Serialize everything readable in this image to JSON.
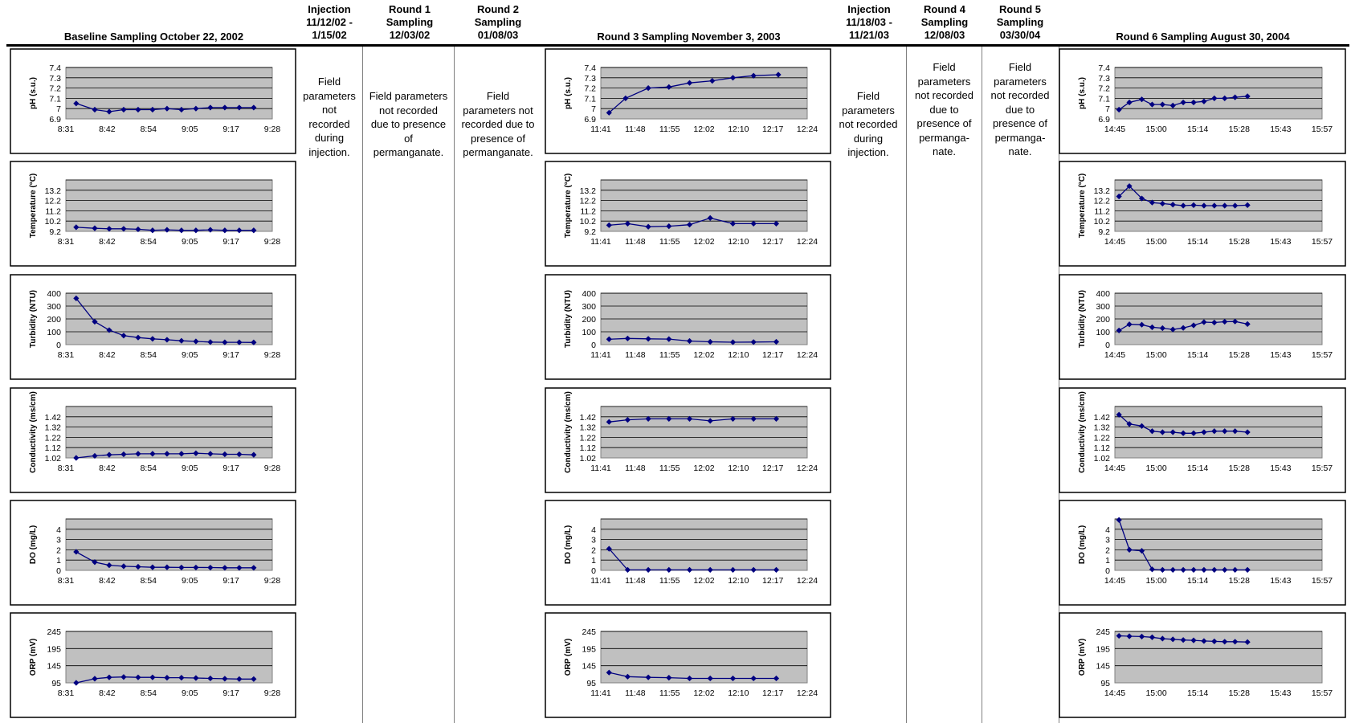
{
  "headers": {
    "baseline": "Baseline Sampling  October 22, 2002",
    "injection1": [
      "Injection",
      "11/12/02 -",
      "1/15/02"
    ],
    "round1": [
      "Round 1",
      "Sampling",
      "12/03/02"
    ],
    "round2": [
      "Round 2",
      "Sampling",
      "01/08/03"
    ],
    "round3": "Round 3 Sampling  November 3, 2003",
    "injection2": [
      "Injection",
      "11/18/03 -",
      "11/21/03"
    ],
    "round4": [
      "Round 4",
      "Sampling",
      "12/08/03"
    ],
    "round5": [
      "Round 5",
      "Sampling",
      "03/30/04"
    ],
    "round6": "Round 6 Sampling August 30, 2004"
  },
  "notes": {
    "injection1": [
      "Field",
      "parameters",
      "not",
      "recorded",
      "during",
      "injection."
    ],
    "round1": [
      "Field parameters",
      "not recorded",
      "due to presence",
      "of",
      "permanganate."
    ],
    "round2": [
      "Field",
      "parameters not",
      "recorded due to",
      "presence of",
      "permanganate."
    ],
    "injection2": [
      "Field",
      "parameters",
      "not recorded",
      "during",
      "injection."
    ],
    "round4": [
      "Field",
      "parameters",
      "not recorded",
      "due to",
      "presence of",
      "permanga-",
      "nate."
    ],
    "round5": [
      "Field",
      "parameters",
      "not recorded",
      "due to",
      "presence of",
      "permanga-",
      "nate."
    ]
  },
  "colors": {
    "plot_bg": "#c0c0c0",
    "series": "#000080",
    "grid": "#000000",
    "frame": "#000000"
  },
  "chart_data": [
    {
      "type": "line",
      "column": "baseline",
      "ylabel": "pH (s.u.)",
      "yticks": [
        "6.9",
        "7",
        "7.1",
        "7.2",
        "7.3",
        "7.4"
      ],
      "ylim": [
        6.9,
        7.4
      ],
      "xticks": [
        "8:31",
        "8:42",
        "8:54",
        "9:05",
        "9:17",
        "9:28"
      ],
      "xlim": [
        0,
        1
      ],
      "x": [
        0.05,
        0.14,
        0.21,
        0.28,
        0.35,
        0.42,
        0.49,
        0.56,
        0.63,
        0.7,
        0.77,
        0.84,
        0.91
      ],
      "y": [
        7.05,
        6.99,
        6.97,
        6.99,
        6.99,
        6.99,
        7.0,
        6.99,
        7.0,
        7.01,
        7.01,
        7.01,
        7.01
      ]
    },
    {
      "type": "line",
      "column": "baseline",
      "ylabel": "Temperature (°C)",
      "yticks": [
        "9.2",
        "10.2",
        "11.2",
        "12.2",
        "13.2"
      ],
      "ylim": [
        9.2,
        14.2
      ],
      "xticks": [
        "8:31",
        "8:42",
        "8:54",
        "9:05",
        "9:17",
        "9:28"
      ],
      "xlim": [
        0,
        1
      ],
      "x": [
        0.05,
        0.14,
        0.21,
        0.28,
        0.35,
        0.42,
        0.49,
        0.56,
        0.63,
        0.7,
        0.77,
        0.84,
        0.91
      ],
      "y": [
        9.6,
        9.5,
        9.45,
        9.45,
        9.4,
        9.3,
        9.35,
        9.3,
        9.3,
        9.35,
        9.3,
        9.3,
        9.3
      ]
    },
    {
      "type": "line",
      "column": "baseline",
      "ylabel": "Turbidity (NTU)",
      "yticks": [
        "0",
        "100",
        "200",
        "300",
        "400"
      ],
      "ylim": [
        0,
        400
      ],
      "xticks": [
        "8:31",
        "8:42",
        "8:54",
        "9:05",
        "9:17",
        "9:28"
      ],
      "xlim": [
        0,
        1
      ],
      "x": [
        0.05,
        0.14,
        0.21,
        0.28,
        0.35,
        0.42,
        0.49,
        0.56,
        0.63,
        0.7,
        0.77,
        0.84,
        0.91
      ],
      "y": [
        360,
        178,
        113,
        70,
        55,
        45,
        38,
        30,
        25,
        20,
        18,
        18,
        17
      ]
    },
    {
      "type": "line",
      "column": "baseline",
      "ylabel": "Conductivity (ms/cm)",
      "yticks": [
        "1.02",
        "1.12",
        "1.22",
        "1.32",
        "1.42"
      ],
      "ylim": [
        1.02,
        1.52
      ],
      "xticks": [
        "8:31",
        "8:42",
        "8:54",
        "9:05",
        "9:17",
        "9:28"
      ],
      "xlim": [
        0,
        1
      ],
      "x": [
        0.05,
        0.14,
        0.21,
        0.28,
        0.35,
        0.42,
        0.49,
        0.56,
        0.63,
        0.7,
        0.77,
        0.84,
        0.91
      ],
      "y": [
        1.02,
        1.04,
        1.05,
        1.055,
        1.06,
        1.06,
        1.06,
        1.06,
        1.065,
        1.06,
        1.055,
        1.055,
        1.05
      ]
    },
    {
      "type": "line",
      "column": "baseline",
      "ylabel": "DO (mg/L)",
      "yticks": [
        "0",
        "1",
        "2",
        "3",
        "4"
      ],
      "ylim": [
        0,
        5
      ],
      "xticks": [
        "8:31",
        "8:42",
        "8:54",
        "9:05",
        "9:17",
        "9:28"
      ],
      "xlim": [
        0,
        1
      ],
      "x": [
        0.05,
        0.14,
        0.21,
        0.28,
        0.35,
        0.42,
        0.49,
        0.56,
        0.63,
        0.7,
        0.77,
        0.84,
        0.91
      ],
      "y": [
        1.8,
        0.8,
        0.5,
        0.4,
        0.35,
        0.3,
        0.3,
        0.28,
        0.28,
        0.27,
        0.25,
        0.25,
        0.25
      ]
    },
    {
      "type": "line",
      "column": "baseline",
      "ylabel": "ORP (mV)",
      "yticks": [
        "95",
        "145",
        "195",
        "245"
      ],
      "ylim": [
        95,
        245
      ],
      "xticks": [
        "8:31",
        "8:42",
        "8:54",
        "9:05",
        "9:17",
        "9:28"
      ],
      "xlim": [
        0,
        1
      ],
      "x": [
        0.05,
        0.14,
        0.21,
        0.28,
        0.35,
        0.42,
        0.49,
        0.56,
        0.63,
        0.7,
        0.77,
        0.84,
        0.91
      ],
      "y": [
        95,
        107,
        111,
        112,
        111,
        111,
        110,
        110,
        109,
        108,
        107,
        106,
        106
      ]
    },
    {
      "type": "line",
      "column": "round3",
      "ylabel": "pH (s.u.)",
      "yticks": [
        "6.9",
        "7",
        "7.1",
        "7.2",
        "7.3",
        "7.4"
      ],
      "ylim": [
        6.9,
        7.4
      ],
      "xticks": [
        "11:41",
        "11:48",
        "11:55",
        "12:02",
        "12:10",
        "12:17",
        "12:24"
      ],
      "xlim": [
        0,
        1
      ],
      "x": [
        0.04,
        0.12,
        0.23,
        0.33,
        0.43,
        0.54,
        0.64,
        0.74,
        0.86
      ],
      "y": [
        6.96,
        7.1,
        7.2,
        7.21,
        7.25,
        7.27,
        7.3,
        7.32,
        7.33
      ]
    },
    {
      "type": "line",
      "column": "round3",
      "ylabel": "Temperature (°C)",
      "yticks": [
        "9.2",
        "10.2",
        "11.2",
        "12.2",
        "13.2"
      ],
      "ylim": [
        9.2,
        14.2
      ],
      "xticks": [
        "11:41",
        "11:48",
        "11:55",
        "12:02",
        "12:10",
        "12:17",
        "12:24"
      ],
      "xlim": [
        0,
        1
      ],
      "x": [
        0.04,
        0.13,
        0.23,
        0.33,
        0.43,
        0.53,
        0.64,
        0.74,
        0.85
      ],
      "y": [
        9.8,
        9.95,
        9.65,
        9.7,
        9.85,
        10.5,
        9.95,
        9.95,
        9.95
      ]
    },
    {
      "type": "line",
      "column": "round3",
      "ylabel": "Turbidity (NTU)",
      "yticks": [
        "0",
        "100",
        "200",
        "300",
        "400"
      ],
      "ylim": [
        0,
        400
      ],
      "xticks": [
        "11:41",
        "11:48",
        "11:55",
        "12:02",
        "12:10",
        "12:17",
        "12:24"
      ],
      "xlim": [
        0,
        1
      ],
      "x": [
        0.04,
        0.13,
        0.23,
        0.33,
        0.43,
        0.53,
        0.64,
        0.74,
        0.85
      ],
      "y": [
        42,
        48,
        45,
        43,
        28,
        22,
        19,
        20,
        22
      ]
    },
    {
      "type": "line",
      "column": "round3",
      "ylabel": "Conductivity (ms/cm)",
      "yticks": [
        "1.02",
        "1.12",
        "1.22",
        "1.32",
        "1.42"
      ],
      "ylim": [
        1.02,
        1.52
      ],
      "xticks": [
        "11:41",
        "11:48",
        "11:55",
        "12:02",
        "12:10",
        "12:17",
        "12:24"
      ],
      "xlim": [
        0,
        1
      ],
      "x": [
        0.04,
        0.13,
        0.23,
        0.33,
        0.43,
        0.53,
        0.64,
        0.74,
        0.85
      ],
      "y": [
        1.37,
        1.39,
        1.4,
        1.4,
        1.4,
        1.38,
        1.4,
        1.4,
        1.4
      ]
    },
    {
      "type": "line",
      "column": "round3",
      "ylabel": "DO (mg/L)",
      "yticks": [
        "0",
        "1",
        "2",
        "3",
        "4"
      ],
      "ylim": [
        0,
        5
      ],
      "xticks": [
        "11:41",
        "11:48",
        "11:55",
        "12:02",
        "12:10",
        "12:17",
        "12:24"
      ],
      "xlim": [
        0,
        1
      ],
      "x": [
        0.04,
        0.13,
        0.23,
        0.33,
        0.43,
        0.53,
        0.64,
        0.74,
        0.85
      ],
      "y": [
        2.1,
        0.05,
        0.05,
        0.05,
        0.05,
        0.05,
        0.05,
        0.05,
        0.05
      ]
    },
    {
      "type": "line",
      "column": "round3",
      "ylabel": "ORP (mV)",
      "yticks": [
        "95",
        "145",
        "195",
        "245"
      ],
      "ylim": [
        95,
        245
      ],
      "xticks": [
        "11:41",
        "11:48",
        "11:55",
        "12:02",
        "12:10",
        "12:17",
        "12:24"
      ],
      "xlim": [
        0,
        1
      ],
      "x": [
        0.04,
        0.13,
        0.23,
        0.33,
        0.43,
        0.53,
        0.64,
        0.74,
        0.85
      ],
      "y": [
        125,
        113,
        111,
        110,
        108,
        108,
        108,
        108,
        108
      ]
    },
    {
      "type": "line",
      "column": "round6",
      "ylabel": "pH (s.u.)",
      "yticks": [
        "6.9",
        "7",
        "7.1",
        "7.2",
        "7.3",
        "7.4"
      ],
      "ylim": [
        6.9,
        7.4
      ],
      "xticks": [
        "14:45",
        "15:00",
        "15:14",
        "15:28",
        "15:43",
        "15:57"
      ],
      "xlim": [
        0,
        1
      ],
      "x": [
        0.02,
        0.07,
        0.13,
        0.18,
        0.23,
        0.28,
        0.33,
        0.38,
        0.43,
        0.48,
        0.53,
        0.58,
        0.64
      ],
      "y": [
        6.99,
        7.06,
        7.09,
        7.04,
        7.04,
        7.03,
        7.06,
        7.06,
        7.07,
        7.1,
        7.1,
        7.11,
        7.12
      ]
    },
    {
      "type": "line",
      "column": "round6",
      "ylabel": "Temperature (°C)",
      "yticks": [
        "9.2",
        "10.2",
        "11.2",
        "12.2",
        "13.2"
      ],
      "ylim": [
        9.2,
        14.2
      ],
      "xticks": [
        "14:45",
        "15:00",
        "15:14",
        "15:28",
        "15:43",
        "15:57"
      ],
      "xlim": [
        0,
        1
      ],
      "x": [
        0.02,
        0.07,
        0.13,
        0.18,
        0.23,
        0.28,
        0.33,
        0.38,
        0.43,
        0.48,
        0.53,
        0.58,
        0.64
      ],
      "y": [
        12.6,
        13.6,
        12.4,
        12.0,
        11.9,
        11.8,
        11.7,
        11.75,
        11.7,
        11.7,
        11.7,
        11.7,
        11.75
      ]
    },
    {
      "type": "line",
      "column": "round6",
      "ylabel": "Turbidity (NTU)",
      "yticks": [
        "0",
        "100",
        "200",
        "300",
        "400"
      ],
      "ylim": [
        0,
        400
      ],
      "xticks": [
        "14:45",
        "15:00",
        "15:14",
        "15:28",
        "15:43",
        "15:57"
      ],
      "xlim": [
        0,
        1
      ],
      "x": [
        0.02,
        0.07,
        0.13,
        0.18,
        0.23,
        0.28,
        0.33,
        0.38,
        0.43,
        0.48,
        0.53,
        0.58,
        0.64
      ],
      "y": [
        110,
        158,
        155,
        135,
        128,
        118,
        130,
        150,
        175,
        172,
        178,
        180,
        160
      ]
    },
    {
      "type": "line",
      "column": "round6",
      "ylabel": "Conductivity (ms/cm)",
      "yticks": [
        "1.02",
        "1.12",
        "1.22",
        "1.32",
        "1.42"
      ],
      "ylim": [
        1.02,
        1.52
      ],
      "xticks": [
        "14:45",
        "15:00",
        "15:14",
        "15:28",
        "15:43",
        "15:57"
      ],
      "xlim": [
        0,
        1
      ],
      "x": [
        0.02,
        0.07,
        0.13,
        0.18,
        0.23,
        0.28,
        0.33,
        0.38,
        0.43,
        0.48,
        0.53,
        0.58,
        0.64
      ],
      "y": [
        1.44,
        1.35,
        1.33,
        1.28,
        1.27,
        1.27,
        1.26,
        1.26,
        1.27,
        1.28,
        1.28,
        1.28,
        1.27
      ]
    },
    {
      "type": "line",
      "column": "round6",
      "ylabel": "DO (mg/L)",
      "yticks": [
        "0",
        "1",
        "2",
        "3",
        "4"
      ],
      "ylim": [
        0,
        5
      ],
      "xticks": [
        "14:45",
        "15:00",
        "15:14",
        "15:28",
        "15:43",
        "15:57"
      ],
      "xlim": [
        0,
        1
      ],
      "x": [
        0.02,
        0.07,
        0.13,
        0.18,
        0.23,
        0.28,
        0.33,
        0.38,
        0.43,
        0.48,
        0.53,
        0.58,
        0.64
      ],
      "y": [
        4.9,
        2.0,
        1.9,
        0.1,
        0.05,
        0.05,
        0.05,
        0.05,
        0.05,
        0.05,
        0.05,
        0.05,
        0.05
      ]
    },
    {
      "type": "line",
      "column": "round6",
      "ylabel": "ORP (mV)",
      "yticks": [
        "95",
        "145",
        "195",
        "245"
      ],
      "ylim": [
        95,
        245
      ],
      "xticks": [
        "14:45",
        "15:00",
        "15:14",
        "15:28",
        "15:43",
        "15:57"
      ],
      "xlim": [
        0,
        1
      ],
      "x": [
        0.02,
        0.07,
        0.13,
        0.18,
        0.23,
        0.28,
        0.33,
        0.38,
        0.43,
        0.48,
        0.53,
        0.58,
        0.64
      ],
      "y": [
        232,
        231,
        230,
        228,
        224,
        222,
        220,
        219,
        217,
        216,
        215,
        215,
        214
      ]
    }
  ]
}
